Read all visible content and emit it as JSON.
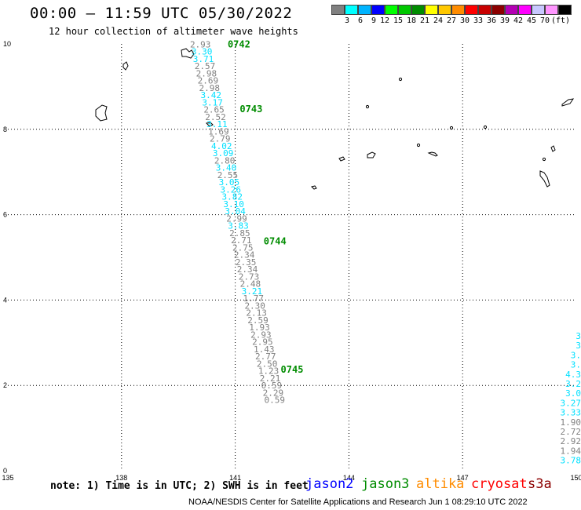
{
  "header": {
    "title": "00:00 – 11:59 UTC 05/30/2022",
    "subtitle": "12 hour collection of altimeter wave heights"
  },
  "legend": {
    "colors": [
      "#808080",
      "#00ffff",
      "#00b4ff",
      "#0000ff",
      "#00ff00",
      "#00c800",
      "#008c00",
      "#ffff00",
      "#ffc800",
      "#ff8c00",
      "#ff0000",
      "#c80000",
      "#8c0000",
      "#b400b4",
      "#ff00ff",
      "#c8c8ff",
      "#ff96ff",
      "#000000"
    ],
    "labels": [
      "3",
      "6",
      "9",
      "12",
      "15",
      "18",
      "21",
      "24",
      "27",
      "30",
      "33",
      "36",
      "39",
      "42",
      "45",
      "70"
    ],
    "unit": "(ft)"
  },
  "axes": {
    "x_ticks": [
      "135",
      "138",
      "141",
      "144",
      "147",
      "150"
    ],
    "y_ticks": [
      "0",
      "2",
      "4",
      "6",
      "8",
      "10"
    ]
  },
  "map_data": {
    "lon_range": [
      135,
      150
    ],
    "lat_range": [
      0,
      10
    ],
    "track_points": [
      {
        "lat": 9.92,
        "lon": 140.08,
        "v": "2.93",
        "c": "gray"
      },
      {
        "lat": 9.75,
        "lon": 140.12,
        "v": "3.30",
        "c": "cyan"
      },
      {
        "lat": 9.58,
        "lon": 140.16,
        "v": "3.71",
        "c": "cyan"
      },
      {
        "lat": 9.41,
        "lon": 140.2,
        "v": "2.57",
        "c": "gray"
      },
      {
        "lat": 9.24,
        "lon": 140.24,
        "v": "2.98",
        "c": "gray"
      },
      {
        "lat": 9.07,
        "lon": 140.28,
        "v": "2.69",
        "c": "gray"
      },
      {
        "lat": 8.9,
        "lon": 140.32,
        "v": "2.98",
        "c": "gray"
      },
      {
        "lat": 8.73,
        "lon": 140.36,
        "v": "3.42",
        "c": "cyan"
      },
      {
        "lat": 8.56,
        "lon": 140.4,
        "v": "3.17",
        "c": "cyan"
      },
      {
        "lat": 8.39,
        "lon": 140.44,
        "v": "2.65",
        "c": "gray"
      },
      {
        "lat": 8.22,
        "lon": 140.48,
        "v": "2.52",
        "c": "gray"
      },
      {
        "lat": 8.05,
        "lon": 140.52,
        "v": "3.11",
        "c": "cyan"
      },
      {
        "lat": 7.88,
        "lon": 140.56,
        "v": "1.69",
        "c": "gray"
      },
      {
        "lat": 7.71,
        "lon": 140.6,
        "v": "2.79",
        "c": "gray"
      },
      {
        "lat": 7.54,
        "lon": 140.64,
        "v": "4.02",
        "c": "cyan"
      },
      {
        "lat": 7.37,
        "lon": 140.68,
        "v": "3.09",
        "c": "cyan"
      },
      {
        "lat": 7.2,
        "lon": 140.72,
        "v": "2.80",
        "c": "gray"
      },
      {
        "lat": 7.03,
        "lon": 140.76,
        "v": "3.40",
        "c": "cyan"
      },
      {
        "lat": 6.86,
        "lon": 140.8,
        "v": "2.55",
        "c": "gray"
      },
      {
        "lat": 6.69,
        "lon": 140.84,
        "v": "3.05",
        "c": "cyan"
      },
      {
        "lat": 6.52,
        "lon": 140.88,
        "v": "3.26",
        "c": "cyan"
      },
      {
        "lat": 6.35,
        "lon": 140.92,
        "v": "3.82",
        "c": "cyan"
      },
      {
        "lat": 6.18,
        "lon": 140.96,
        "v": "3.10",
        "c": "cyan"
      },
      {
        "lat": 6.01,
        "lon": 141.0,
        "v": "3.04",
        "c": "cyan"
      },
      {
        "lat": 5.84,
        "lon": 141.04,
        "v": "2.99",
        "c": "gray"
      },
      {
        "lat": 5.67,
        "lon": 141.08,
        "v": "3.83",
        "c": "cyan"
      },
      {
        "lat": 5.5,
        "lon": 141.12,
        "v": "2.85",
        "c": "gray"
      },
      {
        "lat": 5.33,
        "lon": 141.16,
        "v": "2.71",
        "c": "gray"
      },
      {
        "lat": 5.16,
        "lon": 141.2,
        "v": "2.75",
        "c": "gray"
      },
      {
        "lat": 4.99,
        "lon": 141.24,
        "v": "2.34",
        "c": "gray"
      },
      {
        "lat": 4.82,
        "lon": 141.28,
        "v": "2.35",
        "c": "gray"
      },
      {
        "lat": 4.65,
        "lon": 141.32,
        "v": "2.34",
        "c": "gray"
      },
      {
        "lat": 4.48,
        "lon": 141.36,
        "v": "2.73",
        "c": "gray"
      },
      {
        "lat": 4.31,
        "lon": 141.4,
        "v": "2.48",
        "c": "gray"
      },
      {
        "lat": 4.14,
        "lon": 141.44,
        "v": "3.21",
        "c": "cyan"
      },
      {
        "lat": 3.97,
        "lon": 141.48,
        "v": "1.77",
        "c": "gray"
      },
      {
        "lat": 3.8,
        "lon": 141.52,
        "v": "2.30",
        "c": "gray"
      },
      {
        "lat": 3.63,
        "lon": 141.56,
        "v": "2.13",
        "c": "gray"
      },
      {
        "lat": 3.46,
        "lon": 141.6,
        "v": "2.59",
        "c": "gray"
      },
      {
        "lat": 3.29,
        "lon": 141.64,
        "v": "1.93",
        "c": "gray"
      },
      {
        "lat": 3.12,
        "lon": 141.68,
        "v": "2.93",
        "c": "gray"
      },
      {
        "lat": 2.95,
        "lon": 141.72,
        "v": "2.95",
        "c": "gray"
      },
      {
        "lat": 2.78,
        "lon": 141.76,
        "v": "1.43",
        "c": "gray"
      },
      {
        "lat": 2.61,
        "lon": 141.8,
        "v": "2.77",
        "c": "gray"
      },
      {
        "lat": 2.44,
        "lon": 141.84,
        "v": "2.50",
        "c": "gray"
      },
      {
        "lat": 2.27,
        "lon": 141.88,
        "v": "1.23",
        "c": "gray"
      },
      {
        "lat": 2.1,
        "lon": 141.92,
        "v": "2.21",
        "c": "gray"
      },
      {
        "lat": 1.93,
        "lon": 141.96,
        "v": "0.59",
        "c": "gray"
      },
      {
        "lat": 1.76,
        "lon": 142.0,
        "v": "2.29",
        "c": "gray"
      },
      {
        "lat": 1.59,
        "lon": 142.04,
        "v": "0.59",
        "c": "gray"
      }
    ],
    "time_labels": [
      {
        "t": "0742",
        "lat": 9.92,
        "lon": 140.8
      },
      {
        "t": "0743",
        "lat": 8.4,
        "lon": 141.12
      },
      {
        "t": "0744",
        "lat": 5.3,
        "lon": 141.75
      },
      {
        "t": "0745",
        "lat": 2.3,
        "lon": 142.2
      }
    ],
    "edge_points": [
      {
        "v": "3",
        "c": "cyan"
      },
      {
        "v": "3",
        "c": "cyan"
      },
      {
        "v": "3.",
        "c": "cyan"
      },
      {
        "v": "3.",
        "c": "cyan"
      },
      {
        "v": "4.3",
        "c": "cyan"
      },
      {
        "v": "3.2",
        "c": "cyan"
      },
      {
        "v": "3.0",
        "c": "cyan"
      },
      {
        "v": "3.27",
        "c": "cyan"
      },
      {
        "v": "3.33",
        "c": "cyan"
      },
      {
        "v": "1.90",
        "c": "gray"
      },
      {
        "v": "2.72",
        "c": "gray"
      },
      {
        "v": "2.92",
        "c": "gray"
      },
      {
        "v": "1.94",
        "c": "gray"
      },
      {
        "v": "3.78",
        "c": "cyan"
      }
    ]
  },
  "footer": {
    "note": "note: 1) Time is in UTC; 2) SWH is in feet",
    "satellites": [
      {
        "name": "jason2",
        "color": "#0000ff"
      },
      {
        "name": "jason3",
        "color": "#008c00"
      },
      {
        "name": "altika",
        "color": "#ff8c00"
      },
      {
        "name": "cryosat",
        "color": "#ff0000"
      },
      {
        "name": "s3a",
        "color": "#8c0000"
      }
    ],
    "credit": "NOAA/NESDIS Center for Satellite Applications and Research    Jun  1 08:29:10 UTC 2022"
  }
}
